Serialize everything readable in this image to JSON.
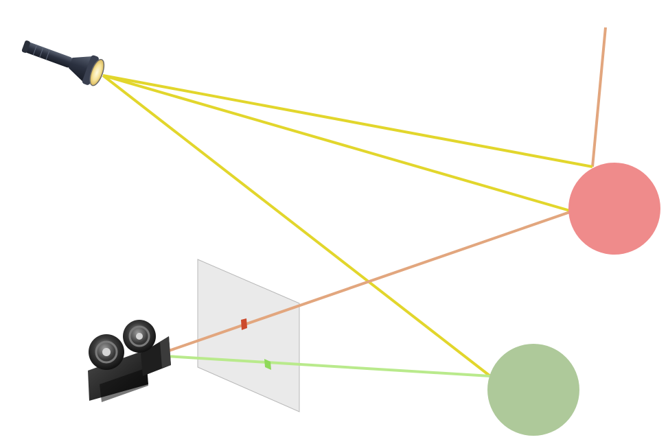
{
  "diagram": {
    "kind": "ray-tracing illustration",
    "icons": [
      "flashlight-icon",
      "movie-camera-icon"
    ],
    "colors": {
      "light_ray": "#e2d62c",
      "reflected_ray_red": "#e2a67e",
      "reflected_ray_green": "#b9ea8c",
      "red_sphere": "#ef8b8b",
      "green_sphere": "#aec99a",
      "image_plane": "#e8e8e8",
      "red_pixel": "#cc4a2c",
      "green_pixel": "#8fd95a"
    }
  }
}
